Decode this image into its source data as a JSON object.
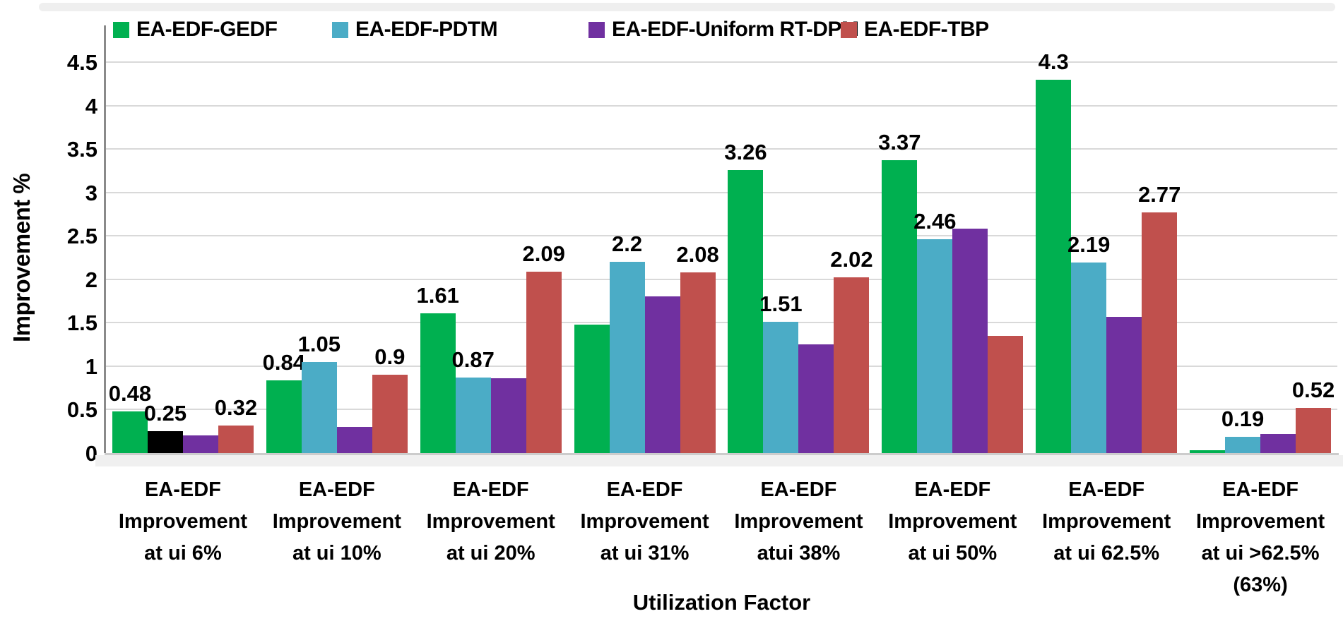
{
  "chart_data": {
    "type": "bar",
    "title": "",
    "xlabel": "Utilization Factor",
    "ylabel": "Improvement %",
    "ylim": [
      0,
      4.5
    ],
    "ytick_labels": [
      "0",
      "0.5",
      "1",
      "1.5",
      "2",
      "2.5",
      "3",
      "3.5",
      "4",
      "4.5"
    ],
    "ytick_values": [
      0,
      0.5,
      1,
      1.5,
      2,
      2.5,
      3,
      3.5,
      4,
      4.5
    ],
    "grid": "horizontal",
    "legend_position": "top",
    "categories": [
      [
        "EA-EDF",
        "Improvement",
        "at ui 6%"
      ],
      [
        "EA-EDF",
        "Improvement",
        "at ui 10%"
      ],
      [
        "EA-EDF",
        "Improvement",
        "at ui 20%"
      ],
      [
        "EA-EDF",
        "Improvement",
        "at ui 31%"
      ],
      [
        "EA-EDF",
        "Improvement",
        "atui  38%"
      ],
      [
        "EA-EDF",
        "Improvement",
        "at ui  50%"
      ],
      [
        "EA-EDF",
        "Improvement",
        "at ui 62.5%"
      ],
      [
        "EA-EDF",
        "Improvement",
        "at ui  >62.5%",
        "(63%)"
      ]
    ],
    "series": [
      {
        "name": "EA-EDF-GEDF",
        "color": "#00B050",
        "values": [
          0.48,
          0.84,
          1.61,
          1.48,
          3.26,
          3.37,
          4.3,
          0.03
        ],
        "labels": [
          "0.48",
          "0.84",
          "1.61",
          null,
          "3.26",
          "3.37",
          "4.3",
          null
        ]
      },
      {
        "name": "EA-EDF-PDTM",
        "color": "#4BACC6",
        "values": [
          0.25,
          1.05,
          0.87,
          2.2,
          1.51,
          2.46,
          2.19,
          0.19
        ],
        "labels": [
          "0.25",
          "1.05",
          "0.87",
          "2.2",
          "1.51",
          "2.46",
          "2.19",
          "0.19"
        ]
      },
      {
        "name": "EA-EDF-Uniform RT-DPM",
        "color": "#7030A0",
        "values": [
          0.2,
          0.3,
          0.86,
          1.8,
          1.25,
          2.58,
          1.57,
          0.22
        ],
        "labels": [
          null,
          null,
          null,
          null,
          null,
          null,
          null,
          null
        ]
      },
      {
        "name": "EA-EDF-TBP",
        "color": "#C0504D",
        "values": [
          0.32,
          0.9,
          2.09,
          2.08,
          2.02,
          1.35,
          2.77,
          0.52
        ],
        "labels": [
          "0.32",
          "0.9",
          "2.09",
          "2.08",
          "2.02",
          null,
          "2.77",
          "0.52"
        ]
      }
    ],
    "bar_color_overrides": [
      {
        "series_index": 1,
        "group_index": 0,
        "color": "#000000"
      }
    ]
  }
}
